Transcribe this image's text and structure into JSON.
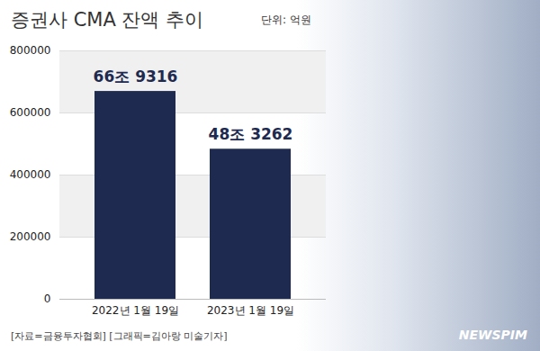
{
  "chart_data": {
    "type": "bar",
    "title": "증권사 CMA 잔액 추이",
    "subtitle": "단위: 억원",
    "source": "[자료=금융투자협회] [그래픽=김아랑 미술기자]",
    "annotations": [
      "NEWSPIM"
    ],
    "categories": [
      "2022년 1월 19일",
      "2023년 1월 19일"
    ],
    "values": [
      669316,
      483262
    ],
    "value_labels": [
      "66조 9316",
      "48조 3262"
    ],
    "color": "#1e2a4f",
    "ylim": [
      0,
      800000
    ],
    "yticks": [
      0,
      200000,
      400000,
      600000,
      800000
    ],
    "grid": true,
    "data_labels": true
  }
}
